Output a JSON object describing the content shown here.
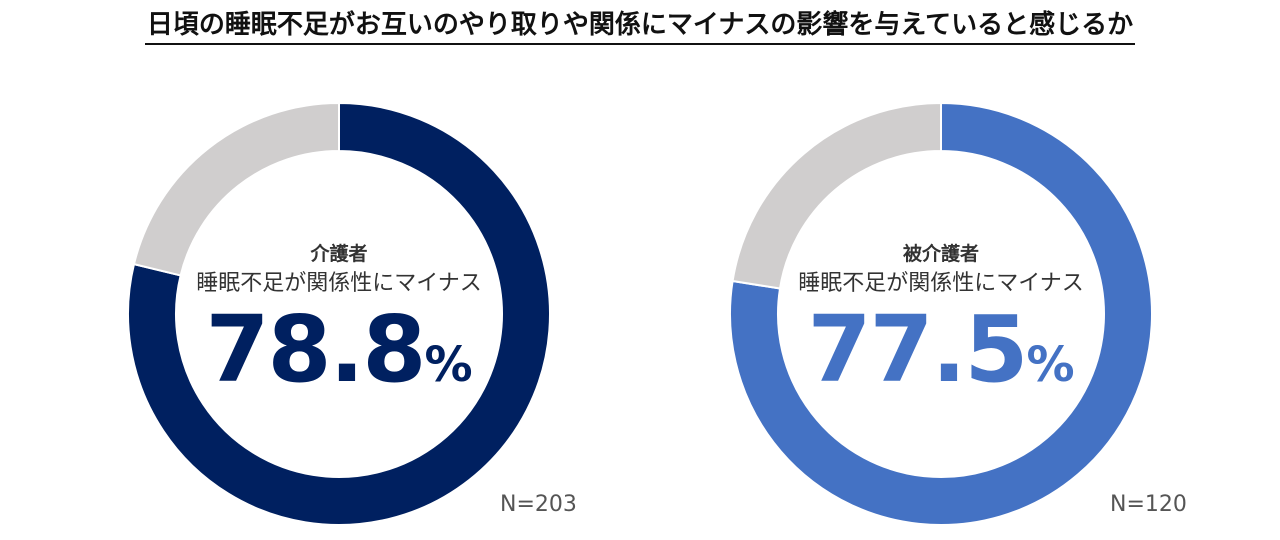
{
  "title": "日頃の睡眠不足がお互いのやり取りや関係にマイナスの影響を与えていると感じるか",
  "chart_data": [
    {
      "type": "pie",
      "variant": "donut",
      "role": "介護者",
      "label": "睡眠不足が関係性にマイナス",
      "value": 78.8,
      "value_text": "78.8",
      "unit": "%",
      "n_label": "N=203",
      "colors": {
        "value": "#002060",
        "rest": "#D0CECE"
      }
    },
    {
      "type": "pie",
      "variant": "donut",
      "role": "被介護者",
      "label": "睡眠不足が関係性にマイナス",
      "value": 77.5,
      "value_text": "77.5",
      "unit": "%",
      "n_label": "N=120",
      "colors": {
        "value": "#4472C4",
        "rest": "#D0CECE"
      }
    }
  ]
}
